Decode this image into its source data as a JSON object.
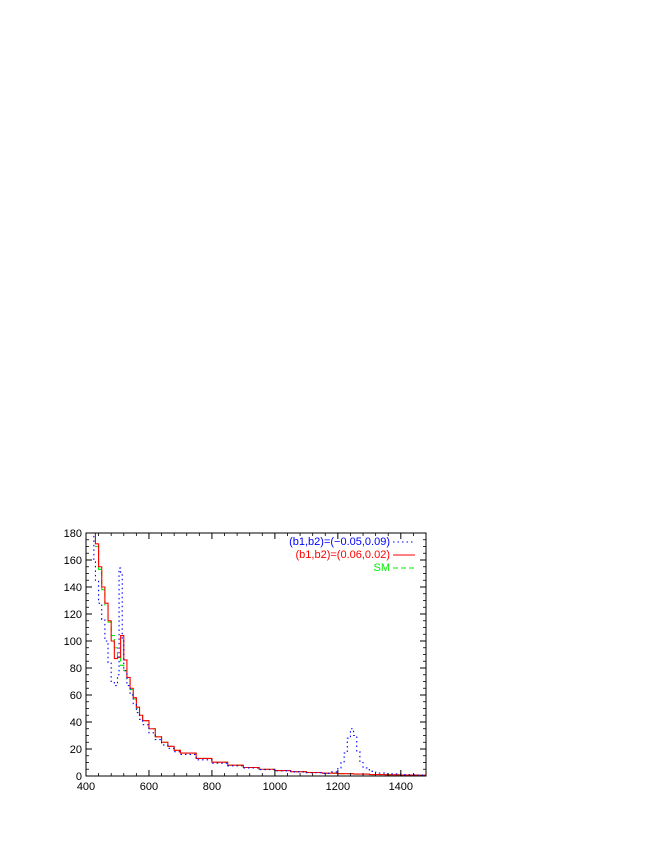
{
  "chart_data": {
    "type": "line",
    "title": "",
    "xlabel": "",
    "ylabel": "",
    "xlim": [
      400,
      1480
    ],
    "ylim": [
      0,
      180
    ],
    "x_ticks": [
      400,
      600,
      800,
      1000,
      1200,
      1400
    ],
    "y_ticks": [
      0,
      20,
      40,
      60,
      80,
      100,
      120,
      140,
      160,
      180
    ],
    "legend_position": "top-right",
    "grid": false,
    "series": [
      {
        "name": "(b1,b2)=(−0.05,0.09)",
        "color": "#0000ff",
        "style": "dotted",
        "x": [
          420,
          425,
          430,
          440,
          450,
          460,
          470,
          480,
          490,
          500,
          505,
          510,
          515,
          520,
          530,
          540,
          550,
          560,
          570,
          580,
          600,
          620,
          640,
          660,
          680,
          700,
          750,
          800,
          850,
          900,
          950,
          1000,
          1050,
          1100,
          1150,
          1180,
          1200,
          1210,
          1220,
          1230,
          1240,
          1250,
          1260,
          1270,
          1280,
          1300,
          1320,
          1350,
          1400,
          1450,
          1480
        ],
        "y": [
          180,
          160,
          145,
          128,
          116,
          100,
          84,
          70,
          67,
          75,
          154,
          150,
          100,
          78,
          67,
          60,
          53,
          47,
          42,
          38,
          32,
          27,
          23,
          20.5,
          18,
          16,
          12,
          9.5,
          7.5,
          6,
          4.8,
          3.8,
          3,
          2.4,
          2,
          3,
          6,
          10,
          17,
          28,
          35,
          30,
          18,
          10,
          6,
          3.5,
          2.2,
          1.5,
          1,
          0.6,
          0.5
        ]
      },
      {
        "name": "(b1,b2)=(0.06,0.02)",
        "color": "#ff0000",
        "style": "solid",
        "x": [
          420,
          430,
          440,
          450,
          460,
          470,
          480,
          490,
          500,
          510,
          520,
          530,
          540,
          550,
          560,
          570,
          580,
          600,
          620,
          640,
          660,
          680,
          700,
          750,
          800,
          850,
          900,
          950,
          1000,
          1050,
          1100,
          1150,
          1200,
          1250,
          1300,
          1350,
          1400,
          1450,
          1480
        ],
        "y": [
          180,
          172,
          155,
          140,
          128,
          115,
          100,
          87,
          88,
          104,
          86,
          73,
          65,
          58,
          51,
          45,
          41,
          35,
          29,
          25,
          22,
          19,
          17,
          13,
          10.2,
          8,
          6.3,
          5,
          4,
          3.2,
          2.6,
          2.1,
          1.7,
          1.4,
          1.1,
          0.9,
          0.7,
          0.6,
          0.5
        ]
      },
      {
        "name": "SM",
        "color": "#00ee00",
        "style": "dashed",
        "x": [
          420,
          430,
          440,
          450,
          460,
          470,
          480,
          490,
          500,
          510,
          520,
          530,
          540,
          550,
          560,
          570,
          580,
          600,
          620,
          640,
          660,
          680,
          700,
          750,
          800,
          850,
          900,
          950,
          1000,
          1050,
          1100,
          1150,
          1200,
          1250,
          1300,
          1350,
          1400,
          1450,
          1480
        ],
        "y": [
          180,
          170,
          153,
          138,
          126,
          114,
          104,
          95,
          88,
          82,
          78,
          72,
          64,
          57,
          50,
          45,
          41,
          35,
          29,
          25,
          22,
          19,
          17,
          13,
          10.2,
          8,
          6.3,
          5,
          4,
          3.2,
          2.6,
          2.1,
          1.7,
          1.4,
          1.1,
          0.9,
          0.7,
          0.6,
          0.5
        ]
      }
    ]
  }
}
